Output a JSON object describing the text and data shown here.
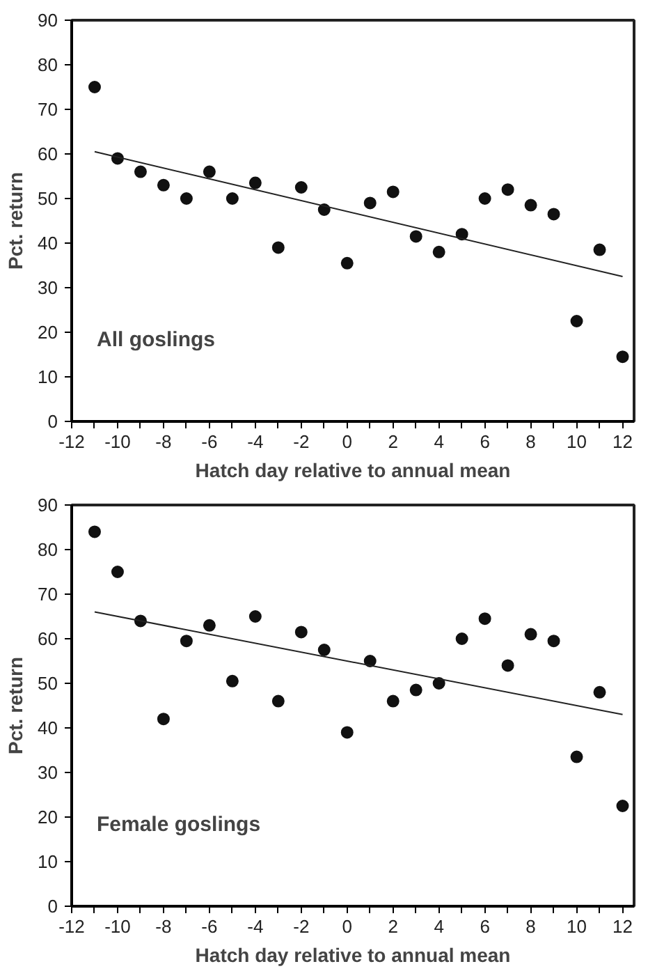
{
  "chart_data": [
    {
      "type": "scatter",
      "xlabel": "Hatch day relative to annual mean",
      "ylabel": "Pct. return",
      "annotations": [
        "All goslings"
      ],
      "grid": false,
      "xlim": [
        -12,
        12.5
      ],
      "ylim": [
        0,
        90
      ],
      "xticks": [
        -12,
        {
          "value": -11,
          "label": null
        },
        -10,
        {
          "value": -9,
          "label": null
        },
        -8,
        {
          "value": -7,
          "label": null
        },
        -6,
        {
          "value": -5,
          "label": null
        },
        -4,
        {
          "value": -3,
          "label": null
        },
        -2,
        {
          "value": -1,
          "label": null
        },
        0,
        {
          "value": 1,
          "label": null
        },
        2,
        {
          "value": 3,
          "label": null
        },
        4,
        {
          "value": 5,
          "label": null
        },
        6,
        {
          "value": 7,
          "label": null
        },
        8,
        {
          "value": 9,
          "label": null
        },
        10,
        {
          "value": 11,
          "label": null
        },
        12
      ],
      "yticks": [
        0,
        10,
        20,
        30,
        40,
        50,
        60,
        70,
        80,
        90
      ],
      "series": [
        {
          "marker": "circle",
          "color": "#111111",
          "x": [
            -11,
            -10,
            -9,
            -8,
            -7,
            -6,
            -5,
            -4,
            -3,
            -2,
            -1,
            0,
            1,
            2,
            3,
            4,
            5,
            6,
            7,
            8,
            9,
            10,
            11,
            12
          ],
          "values": [
            75,
            59,
            56,
            53,
            50,
            56,
            50,
            53.5,
            39,
            52.5,
            47.5,
            35.5,
            49,
            51.5,
            41.5,
            38,
            42,
            50,
            52,
            48.5,
            46.5,
            22.5,
            38.5,
            14.5
          ]
        },
        {
          "type": "line",
          "color": "#222222",
          "x": [
            -11,
            12
          ],
          "values": [
            60.5,
            32.5
          ]
        }
      ]
    },
    {
      "type": "scatter",
      "xlabel": "Hatch day relative to annual mean",
      "ylabel": "Pct. return",
      "annotations": [
        "Female goslings"
      ],
      "grid": false,
      "xlim": [
        -12,
        12.5
      ],
      "ylim": [
        0,
        90
      ],
      "xticks": [
        -12,
        {
          "value": -11,
          "label": null
        },
        -10,
        {
          "value": -9,
          "label": null
        },
        -8,
        {
          "value": -7,
          "label": null
        },
        -6,
        {
          "value": -5,
          "label": null
        },
        -4,
        {
          "value": -3,
          "label": null
        },
        -2,
        {
          "value": -1,
          "label": null
        },
        0,
        {
          "value": 1,
          "label": null
        },
        2,
        {
          "value": 3,
          "label": null
        },
        4,
        {
          "value": 5,
          "label": null
        },
        6,
        {
          "value": 7,
          "label": null
        },
        8,
        {
          "value": 9,
          "label": null
        },
        10,
        {
          "value": 11,
          "label": null
        },
        12
      ],
      "yticks": [
        0,
        10,
        20,
        30,
        40,
        50,
        60,
        70,
        80,
        90
      ],
      "series": [
        {
          "marker": "circle",
          "color": "#111111",
          "x": [
            -11,
            -10,
            -9,
            -8,
            -7,
            -6,
            -5,
            -4,
            -3,
            -2,
            -1,
            0,
            1,
            2,
            3,
            4,
            5,
            6,
            7,
            8,
            9,
            10,
            11,
            12
          ],
          "values": [
            84,
            75,
            64,
            42,
            59.5,
            63,
            50.5,
            65,
            46,
            61.5,
            57.5,
            39,
            55,
            46,
            48.5,
            50,
            60,
            64.5,
            54,
            61,
            59.5,
            33.5,
            48,
            22.5
          ]
        },
        {
          "type": "line",
          "color": "#222222",
          "x": [
            -11,
            12
          ],
          "values": [
            66,
            43
          ]
        }
      ]
    }
  ]
}
